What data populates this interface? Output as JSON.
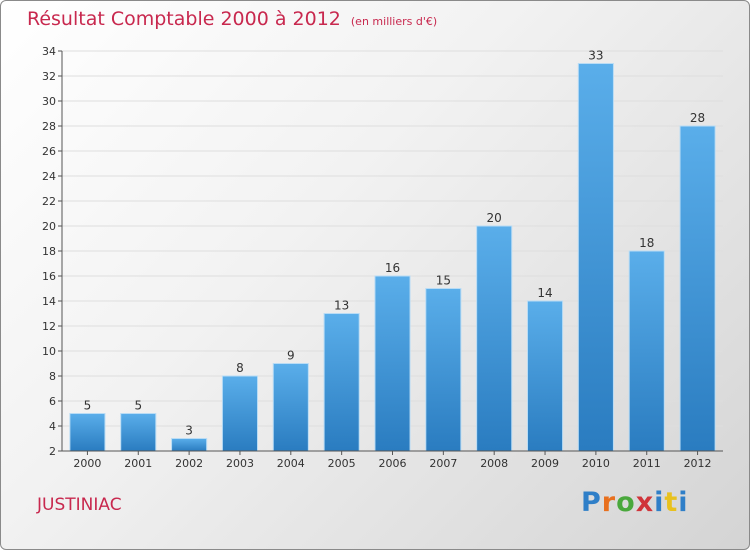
{
  "header": {
    "title": "Résultat Comptable 2000 à 2012",
    "unit": "(en milliers d'€)"
  },
  "footer": {
    "town": "JUSTINIAC",
    "logo": [
      "P",
      "r",
      "o",
      "x",
      "i",
      "t",
      "i"
    ]
  },
  "colors": {
    "title": "#c8284e",
    "bar_light": "#5aaeea",
    "bar_dark": "#2a7cc0"
  },
  "chart_data": {
    "type": "bar",
    "title": "Résultat Comptable 2000 à 2012",
    "subtitle": "(en milliers d'€)",
    "categories": [
      "2000",
      "2001",
      "2002",
      "2003",
      "2004",
      "2005",
      "2006",
      "2007",
      "2008",
      "2009",
      "2010",
      "2011",
      "2012"
    ],
    "values": [
      5,
      5,
      3,
      8,
      9,
      13,
      16,
      15,
      20,
      14,
      33,
      18,
      28
    ],
    "xlabel": "",
    "ylabel": "",
    "ylim": [
      2,
      34
    ],
    "yticks": [
      2,
      4,
      6,
      8,
      10,
      12,
      14,
      16,
      18,
      20,
      22,
      24,
      26,
      28,
      30,
      32,
      34
    ],
    "grid": true,
    "legend": "none",
    "data_labels": true
  }
}
